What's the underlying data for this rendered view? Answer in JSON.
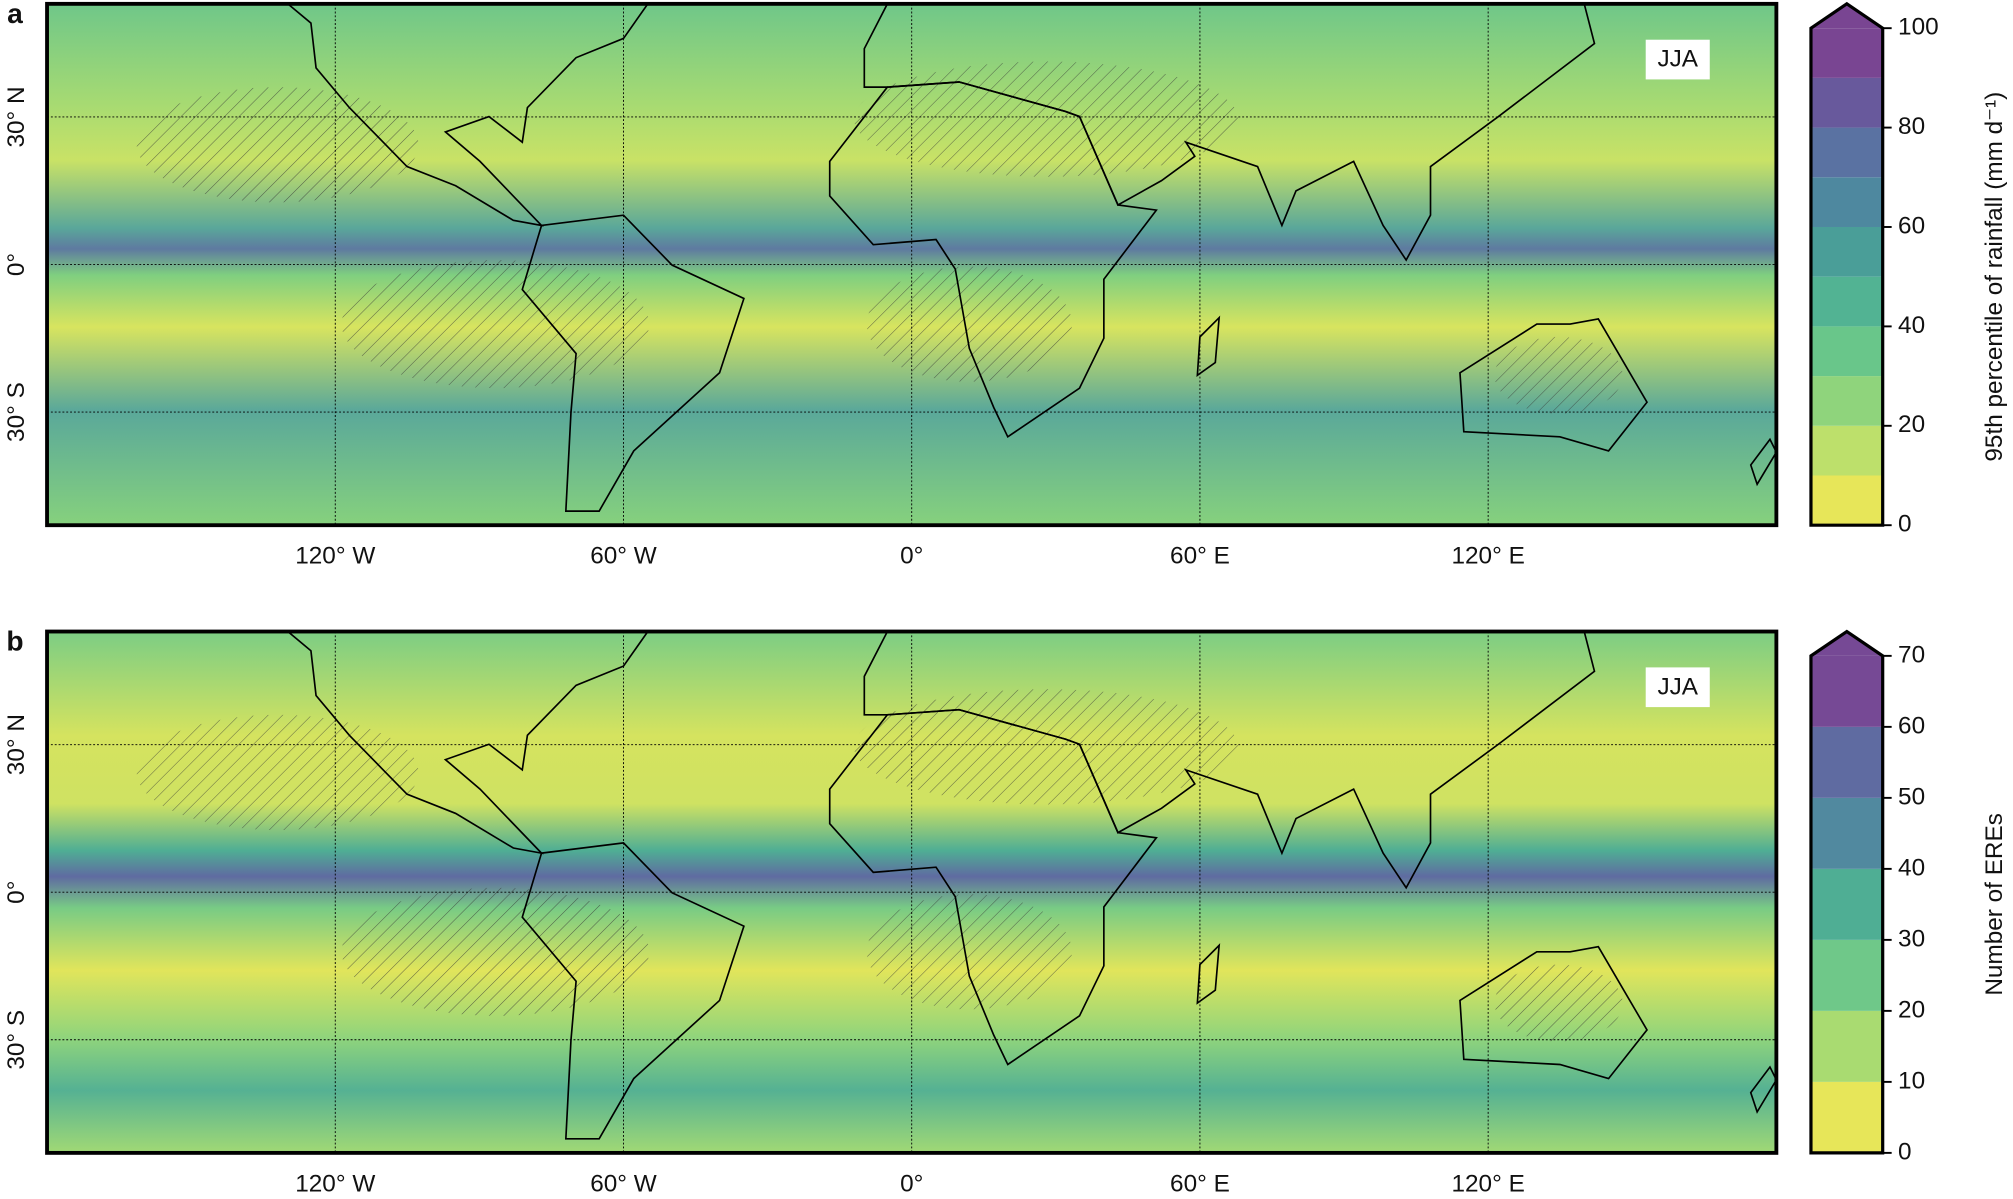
{
  "map": {
    "xlim": [
      -180,
      180
    ],
    "ylim": [
      -53,
      53
    ],
    "xticks": [
      {
        "value": -120,
        "label": "120° W"
      },
      {
        "value": -60,
        "label": "60° W"
      },
      {
        "value": 0,
        "label": "0°"
      },
      {
        "value": 60,
        "label": "60° E"
      },
      {
        "value": 120,
        "label": "120° E"
      }
    ],
    "yticks": [
      {
        "value": 30,
        "label": "30° N"
      },
      {
        "value": 0,
        "label": "0°"
      },
      {
        "value": -30,
        "label": "30° S"
      }
    ]
  },
  "panels": [
    {
      "label": "a",
      "season": "JJA",
      "colorbar": {
        "label": "95th percentile of rainfall (mm d⁻¹)",
        "lim": [
          0,
          100
        ],
        "ticks": [
          0,
          20,
          40,
          60,
          80,
          100
        ],
        "colors": [
          "#e7e659",
          "#bde06b",
          "#8fd47c",
          "#69c68a",
          "#52b393",
          "#4a9e98",
          "#4e889f",
          "#5a72a2",
          "#68599c",
          "#794592"
        ]
      }
    },
    {
      "label": "b",
      "season": "JJA",
      "colorbar": {
        "label": "Number of EREs",
        "lim": [
          0,
          70
        ],
        "ticks": [
          0,
          10,
          20,
          30,
          40,
          50,
          60,
          70
        ],
        "colors": [
          "#e7e659",
          "#a9db71",
          "#6fc889",
          "#4fae94",
          "#51899f",
          "#5f6ba1",
          "#764995"
        ]
      }
    }
  ]
}
